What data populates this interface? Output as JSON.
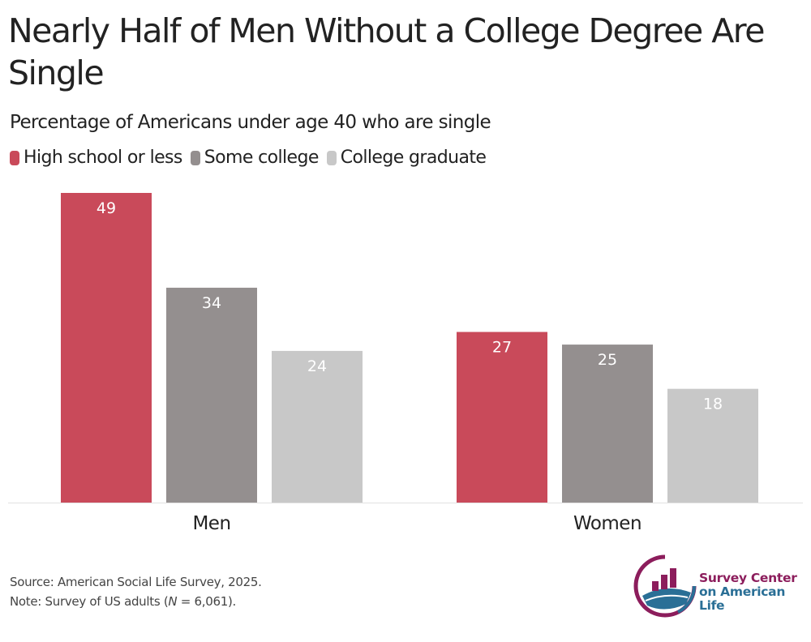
{
  "title": "Nearly Half of Men Without a College Degree Are Single",
  "subtitle": "Percentage of Americans under age 40 who are single",
  "chart_data": {
    "type": "bar",
    "title": "Nearly Half of Men Without a College Degree Are Single",
    "subtitle": "Percentage of Americans under age 40 who are single",
    "categories": [
      "Men",
      "Women"
    ],
    "series": [
      {
        "name": "High school or less",
        "color": "#c94a5a",
        "values": [
          49,
          27
        ]
      },
      {
        "name": "Some college",
        "color": "#948f8f",
        "values": [
          34,
          25
        ]
      },
      {
        "name": "College graduate",
        "color": "#c8c8c8",
        "values": [
          24,
          18
        ]
      }
    ],
    "ylim": [
      0,
      49
    ],
    "grid": false,
    "legend": "top-left",
    "data_labels": true
  },
  "footer": {
    "source": "Source: American Social Life Survey, 2025.",
    "note_prefix": "Note: Survey of US adults (",
    "note_n": "N",
    "note_suffix": " = 6,061)."
  },
  "logo": {
    "line1": "Survey Center",
    "line2": "on American Life",
    "colors": {
      "purple": "#8c1d5c",
      "blue": "#2a6f96"
    }
  }
}
